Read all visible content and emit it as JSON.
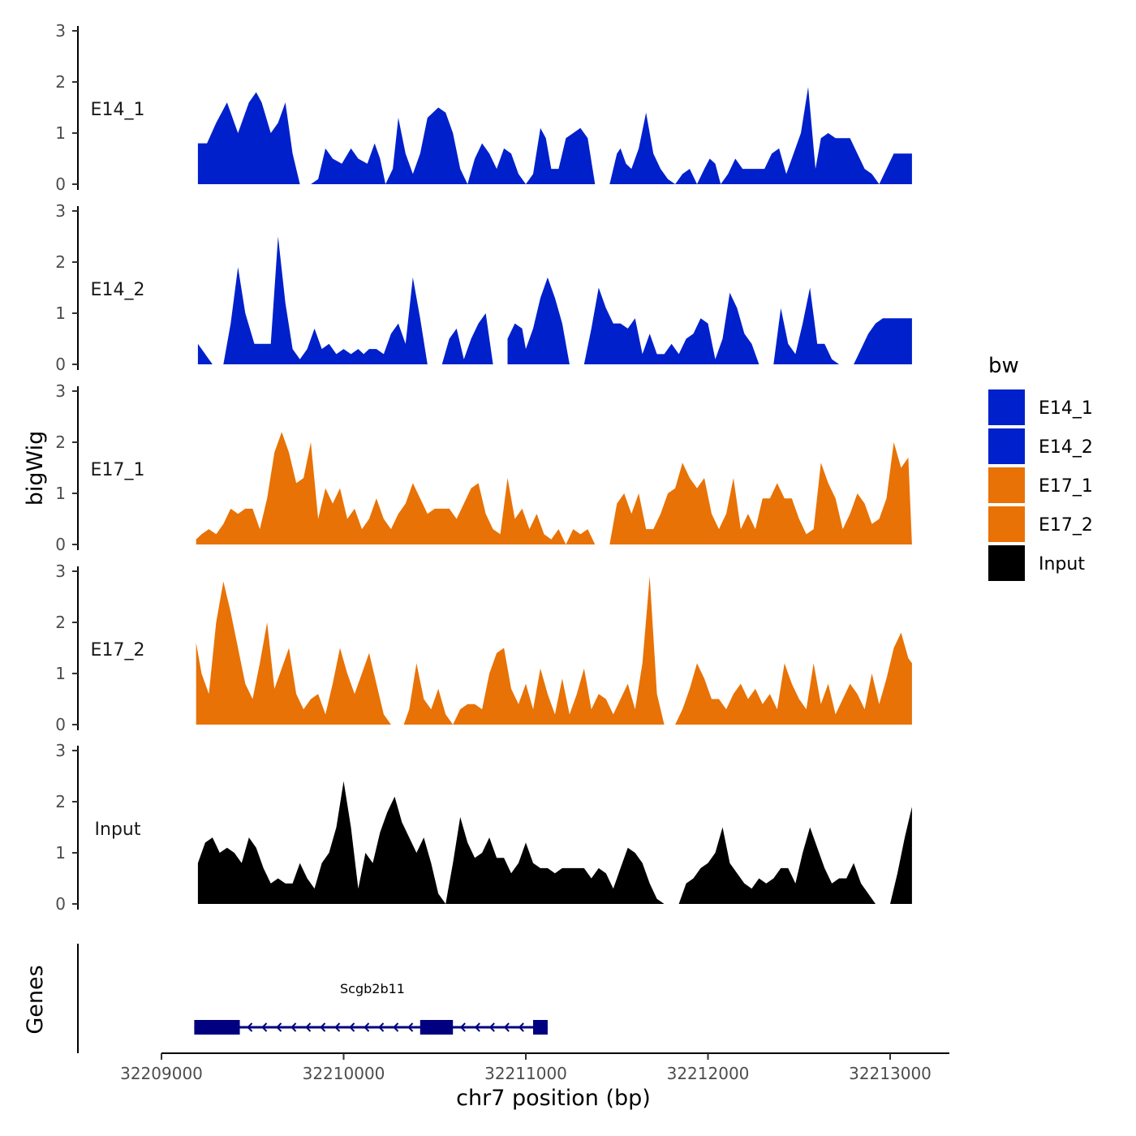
{
  "chart_data": {
    "type": "area",
    "ylabel": "bigWig",
    "xlabel": "chr7 position (bp)",
    "ylim": [
      0,
      3
    ],
    "y_ticks": [
      "0",
      "1",
      "2",
      "3"
    ],
    "xlim": [
      32209000,
      32213300
    ],
    "x_ticks": [
      {
        "value": 32209000,
        "label": "32209000"
      },
      {
        "value": 32210000,
        "label": "32210000"
      },
      {
        "value": 32211000,
        "label": "32211000"
      },
      {
        "value": 32212000,
        "label": "32212000"
      },
      {
        "value": 32213000,
        "label": "32213000"
      }
    ],
    "legend": {
      "title": "bw",
      "entries": [
        {
          "label": "E14_1",
          "color": "#0020cc"
        },
        {
          "label": "E14_2",
          "color": "#0020cc"
        },
        {
          "label": "E17_1",
          "color": "#e87205"
        },
        {
          "label": "E17_2",
          "color": "#e87205"
        },
        {
          "label": "Input",
          "color": "#000000"
        }
      ]
    },
    "series": [
      {
        "name": "E14_1",
        "color": "#0020cc",
        "x": [
          32209200,
          32209250,
          32209300,
          32209360,
          32209420,
          32209480,
          32209520,
          32209550,
          32209600,
          32209640,
          32209680,
          32209720,
          32209760,
          32209790,
          32209820,
          32209860,
          32209900,
          32209940,
          32209990,
          32210040,
          32210080,
          32210130,
          32210170,
          32210200,
          32210230,
          32210270,
          32210300,
          32210340,
          32210380,
          32210420,
          32210460,
          32210520,
          32210560,
          32210600,
          32210640,
          32210680,
          32210720,
          32210760,
          32210800,
          32210840,
          32210880,
          32210920,
          32210960,
          32211000,
          32211040,
          32211080,
          32211110,
          32211140,
          32211180,
          32211220,
          32211260,
          32211300,
          32211340,
          32211380,
          32211420,
          32211460,
          32211500,
          32211520,
          32211550,
          32211580,
          32211620,
          32211660,
          32211700,
          32211740,
          32211780,
          32211820,
          32211860,
          32211900,
          32211940,
          32211980,
          32212010,
          32212040,
          32212070,
          32212110,
          32212150,
          32212190,
          32212230,
          32212270,
          32212310,
          32212350,
          32212390,
          32212430,
          32212470,
          32212510,
          32212550,
          32212590,
          32212620,
          32212660,
          32212700,
          32212740,
          32212780,
          32212820,
          32212860,
          32212900,
          32212940,
          32212980,
          32213020,
          32213060,
          32213120
        ],
        "values": [
          0.8,
          0.8,
          1.2,
          1.6,
          1.0,
          1.6,
          1.8,
          1.6,
          1.0,
          1.2,
          1.6,
          0.6,
          0.0,
          null,
          0.0,
          0.1,
          0.7,
          0.5,
          0.4,
          0.7,
          0.5,
          0.4,
          0.8,
          0.5,
          0.0,
          0.3,
          1.3,
          0.6,
          0.2,
          0.6,
          1.3,
          1.5,
          1.4,
          1.0,
          0.3,
          0.0,
          0.5,
          0.8,
          0.6,
          0.3,
          0.7,
          0.6,
          0.2,
          0.0,
          0.2,
          1.1,
          0.9,
          0.3,
          0.3,
          0.9,
          1.0,
          1.1,
          0.9,
          0.0,
          null,
          0.0,
          0.6,
          0.7,
          0.4,
          0.3,
          0.7,
          1.4,
          0.6,
          0.3,
          0.1,
          0.0,
          0.2,
          0.3,
          0.0,
          0.3,
          0.5,
          0.4,
          0.0,
          0.2,
          0.5,
          0.3,
          0.3,
          0.3,
          0.3,
          0.6,
          0.7,
          0.2,
          0.6,
          1.0,
          1.9,
          0.3,
          0.9,
          1.0,
          0.9,
          0.9,
          0.9,
          0.6,
          0.3,
          0.2,
          0.0,
          0.3,
          0.6,
          0.6,
          0.6
        ]
      },
      {
        "name": "E14_2",
        "color": "#0020cc",
        "x": [
          32209200,
          32209240,
          32209280,
          32209310,
          32209340,
          32209380,
          32209420,
          32209460,
          32209510,
          32209560,
          32209600,
          32209640,
          32209680,
          32209720,
          32209760,
          32209800,
          32209840,
          32209880,
          32209920,
          32209960,
          32210000,
          32210040,
          32210080,
          32210110,
          32210140,
          32210180,
          32210220,
          32210260,
          32210300,
          32210340,
          32210380,
          32210420,
          32210460,
          32210500,
          32210540,
          32210580,
          32210620,
          32210660,
          32210700,
          32210740,
          32210780,
          32210820,
          32210860,
          32210900,
          32210940,
          32210980,
          32211000,
          32211040,
          32211080,
          32211120,
          32211160,
          32211200,
          32211240,
          32211280,
          32211320,
          32211360,
          32211400,
          32211440,
          32211480,
          32211520,
          32211560,
          32211600,
          32211640,
          32211680,
          32211720,
          32211760,
          32211800,
          32211840,
          32211880,
          32211920,
          32211960,
          32212000,
          32212040,
          32212080,
          32212120,
          32212160,
          32212200,
          32212240,
          32212280,
          32212320,
          32212360,
          32212400,
          32212440,
          32212480,
          32212520,
          32212560,
          32212600,
          32212640,
          32212680,
          32212720,
          32212760,
          32212800,
          32212840,
          32212880,
          32212920,
          32212960,
          32213000,
          32213040,
          32213080,
          32213120
        ],
        "values": [
          0.4,
          0.2,
          0.0,
          null,
          0.0,
          0.8,
          1.9,
          1.0,
          0.4,
          0.4,
          0.4,
          2.5,
          1.2,
          0.3,
          0.1,
          0.3,
          0.7,
          0.3,
          0.4,
          0.2,
          0.3,
          0.2,
          0.3,
          0.2,
          0.3,
          0.3,
          0.2,
          0.6,
          0.8,
          0.4,
          1.7,
          0.9,
          0.0,
          null,
          0.0,
          0.5,
          0.7,
          0.1,
          0.5,
          0.8,
          1.0,
          0.0,
          null,
          0.5,
          0.8,
          0.7,
          0.3,
          0.7,
          1.3,
          1.7,
          1.3,
          0.8,
          0.0,
          null,
          0.0,
          0.7,
          1.5,
          1.1,
          0.8,
          0.8,
          0.7,
          0.9,
          0.2,
          0.6,
          0.2,
          0.2,
          0.4,
          0.2,
          0.5,
          0.6,
          0.9,
          0.8,
          0.1,
          0.5,
          1.4,
          1.1,
          0.6,
          0.4,
          0.0,
          null,
          0.0,
          1.1,
          0.4,
          0.2,
          0.8,
          1.5,
          0.4,
          0.4,
          0.1,
          0.0,
          null,
          0.0,
          0.3,
          0.6,
          0.8,
          0.9,
          0.9,
          0.9,
          0.9,
          0.9
        ],
        "__note": "trailing values approximate"
      },
      {
        "name": "E17_1",
        "color": "#e87205",
        "x": [
          32209190,
          32209220,
          32209260,
          32209300,
          32209340,
          32209380,
          32209420,
          32209460,
          32209500,
          32209540,
          32209580,
          32209620,
          32209660,
          32209700,
          32209740,
          32209780,
          32209820,
          32209860,
          32209900,
          32209940,
          32209980,
          32210020,
          32210060,
          32210100,
          32210140,
          32210180,
          32210220,
          32210260,
          32210300,
          32210340,
          32210380,
          32210420,
          32210460,
          32210500,
          32210540,
          32210580,
          32210620,
          32210660,
          32210700,
          32210740,
          32210780,
          32210820,
          32210860,
          32210900,
          32210940,
          32210980,
          32211020,
          32211060,
          32211100,
          32211140,
          32211180,
          32211220,
          32211260,
          32211300,
          32211340,
          32211380,
          32211420,
          32211460,
          32211500,
          32211540,
          32211580,
          32211620,
          32211660,
          32211700,
          32211740,
          32211780,
          32211820,
          32211860,
          32211900,
          32211940,
          32211980,
          32212020,
          32212060,
          32212100,
          32212140,
          32212180,
          32212220,
          32212260,
          32212300,
          32212340,
          32212380,
          32212420,
          32212460,
          32212500,
          32212540,
          32212580,
          32212620,
          32212660,
          32212700,
          32212740,
          32212780,
          32212820,
          32212860,
          32212900,
          32212940,
          32212980,
          32213020,
          32213060,
          32213100,
          32213120
        ],
        "values": [
          0.1,
          0.2,
          0.3,
          0.2,
          0.4,
          0.7,
          0.6,
          0.7,
          0.7,
          0.3,
          0.9,
          1.8,
          2.2,
          1.8,
          1.2,
          1.3,
          2.0,
          0.5,
          1.1,
          0.8,
          1.1,
          0.5,
          0.7,
          0.3,
          0.5,
          0.9,
          0.5,
          0.3,
          0.6,
          0.8,
          1.2,
          0.9,
          0.6,
          0.7,
          0.7,
          0.7,
          0.5,
          0.8,
          1.1,
          1.2,
          0.6,
          0.3,
          0.2,
          1.3,
          0.5,
          0.7,
          0.3,
          0.6,
          0.2,
          0.1,
          0.3,
          0.0,
          0.3,
          0.2,
          0.3,
          0.0,
          null,
          0.0,
          0.8,
          1.0,
          0.6,
          1.0,
          0.3,
          0.3,
          0.6,
          1.0,
          1.1,
          1.6,
          1.3,
          1.1,
          1.3,
          0.6,
          0.3,
          0.6,
          1.3,
          0.3,
          0.6,
          0.3,
          0.9,
          0.9,
          1.2,
          0.9,
          0.9,
          0.5,
          0.2,
          0.3,
          1.6,
          1.2,
          0.9,
          0.3,
          0.6,
          1.0,
          0.8,
          0.4,
          0.5,
          0.9,
          2.0,
          1.5,
          1.7,
          0.0
        ],
        "__note": "values approximate"
      },
      {
        "name": "E17_2",
        "color": "#e87205",
        "x": [
          32209190,
          32209220,
          32209260,
          32209300,
          32209340,
          32209380,
          32209420,
          32209460,
          32209500,
          32209540,
          32209580,
          32209620,
          32209660,
          32209700,
          32209740,
          32209780,
          32209820,
          32209860,
          32209900,
          32209940,
          32209980,
          32210020,
          32210060,
          32210100,
          32210140,
          32210180,
          32210220,
          32210260,
          32210300,
          32210330,
          32210360,
          32210400,
          32210440,
          32210480,
          32210520,
          32210560,
          32210600,
          32210640,
          32210680,
          32210720,
          32210760,
          32210800,
          32210840,
          32210880,
          32210920,
          32210960,
          32211000,
          32211040,
          32211080,
          32211120,
          32211160,
          32211200,
          32211240,
          32211280,
          32211320,
          32211360,
          32211400,
          32211440,
          32211480,
          32211520,
          32211560,
          32211600,
          32211640,
          32211680,
          32211720,
          32211760,
          32211790,
          32211820,
          32211860,
          32211900,
          32211940,
          32211980,
          32212020,
          32212060,
          32212100,
          32212140,
          32212180,
          32212220,
          32212260,
          32212300,
          32212340,
          32212380,
          32212420,
          32212460,
          32212500,
          32212540,
          32212580,
          32212620,
          32212660,
          32212700,
          32212740,
          32212780,
          32212820,
          32212860,
          32212900,
          32212940,
          32212980,
          32213020,
          32213060,
          32213100,
          32213120
        ],
        "values": [
          1.6,
          1.0,
          0.6,
          2.0,
          2.8,
          2.2,
          1.5,
          0.8,
          0.5,
          1.2,
          2.0,
          0.7,
          1.1,
          1.5,
          0.6,
          0.3,
          0.5,
          0.6,
          0.2,
          0.8,
          1.5,
          1.0,
          0.6,
          1.0,
          1.4,
          0.8,
          0.2,
          0.0,
          null,
          0.0,
          0.3,
          1.2,
          0.5,
          0.3,
          0.7,
          0.2,
          0.0,
          0.3,
          0.4,
          0.4,
          0.3,
          1.0,
          1.4,
          1.5,
          0.7,
          0.4,
          0.8,
          0.3,
          1.1,
          0.6,
          0.2,
          0.9,
          0.2,
          0.6,
          1.1,
          0.3,
          0.6,
          0.5,
          0.2,
          0.5,
          0.8,
          0.3,
          1.2,
          2.9,
          0.6,
          0.0,
          null,
          0.0,
          0.3,
          0.7,
          1.2,
          0.9,
          0.5,
          0.5,
          0.3,
          0.6,
          0.8,
          0.5,
          0.7,
          0.4,
          0.6,
          0.3,
          1.2,
          0.8,
          0.5,
          0.3,
          1.2,
          0.4,
          0.8,
          0.2,
          0.5,
          0.8,
          0.6,
          0.3,
          1.0,
          0.4,
          0.9,
          1.5,
          1.8,
          1.3,
          1.2
        ],
        "__note": "values approximate"
      },
      {
        "name": "Input",
        "color": "#000000",
        "x": [
          32209200,
          32209240,
          32209280,
          32209320,
          32209360,
          32209400,
          32209440,
          32209480,
          32209520,
          32209560,
          32209600,
          32209640,
          32209680,
          32209720,
          32209760,
          32209800,
          32209840,
          32209880,
          32209920,
          32209960,
          32210000,
          32210040,
          32210080,
          32210120,
          32210160,
          32210200,
          32210240,
          32210280,
          32210320,
          32210360,
          32210400,
          32210440,
          32210480,
          32210520,
          32210560,
          32210600,
          32210640,
          32210680,
          32210720,
          32210760,
          32210800,
          32210840,
          32210880,
          32210920,
          32210960,
          32211000,
          32211040,
          32211080,
          32211120,
          32211160,
          32211200,
          32211240,
          32211280,
          32211320,
          32211360,
          32211400,
          32211440,
          32211480,
          32211520,
          32211560,
          32211600,
          32211640,
          32211680,
          32211720,
          32211760,
          32211800,
          32211840,
          32211880,
          32211920,
          32211960,
          32212000,
          32212040,
          32212080,
          32212120,
          32212160,
          32212200,
          32212240,
          32212280,
          32212320,
          32212360,
          32212400,
          32212440,
          32212480,
          32212520,
          32212560,
          32212600,
          32212640,
          32212680,
          32212720,
          32212760,
          32212800,
          32212840,
          32212880,
          32212920,
          32212960,
          32213000,
          32213040,
          32213080,
          32213120
        ],
        "values": [
          0.8,
          1.2,
          1.3,
          1.0,
          1.1,
          1.0,
          0.8,
          1.3,
          1.1,
          0.7,
          0.4,
          0.5,
          0.4,
          0.4,
          0.8,
          0.5,
          0.3,
          0.8,
          1.0,
          1.5,
          2.4,
          1.5,
          0.3,
          1.0,
          0.8,
          1.4,
          1.8,
          2.1,
          1.6,
          1.3,
          1.0,
          1.3,
          0.8,
          0.2,
          0.0,
          0.8,
          1.7,
          1.2,
          0.9,
          1.0,
          1.3,
          0.9,
          0.9,
          0.6,
          0.8,
          1.2,
          0.8,
          0.7,
          0.7,
          0.6,
          0.7,
          0.7,
          0.7,
          0.7,
          0.5,
          0.7,
          0.6,
          0.3,
          0.7,
          1.1,
          1.0,
          0.8,
          0.4,
          0.1,
          0.0,
          null,
          0.0,
          0.4,
          0.5,
          0.7,
          0.8,
          1.0,
          1.5,
          0.8,
          0.6,
          0.4,
          0.3,
          0.5,
          0.4,
          0.5,
          0.7,
          0.7,
          0.4,
          1.0,
          1.5,
          1.1,
          0.7,
          0.4,
          0.5,
          0.5,
          0.8,
          0.4,
          0.2,
          0.0,
          null,
          0.0,
          0.6,
          1.3,
          1.9
        ],
        "__note": "values approximate"
      }
    ],
    "genes": {
      "track_label": "Genes",
      "name": "Scgb2b11",
      "strand": "-",
      "start": 32209180,
      "end": 32211120,
      "exons": [
        [
          32209180,
          32209430
        ],
        [
          32210420,
          32210600
        ],
        [
          32211040,
          32211120
        ]
      ],
      "color": "#000080"
    }
  }
}
